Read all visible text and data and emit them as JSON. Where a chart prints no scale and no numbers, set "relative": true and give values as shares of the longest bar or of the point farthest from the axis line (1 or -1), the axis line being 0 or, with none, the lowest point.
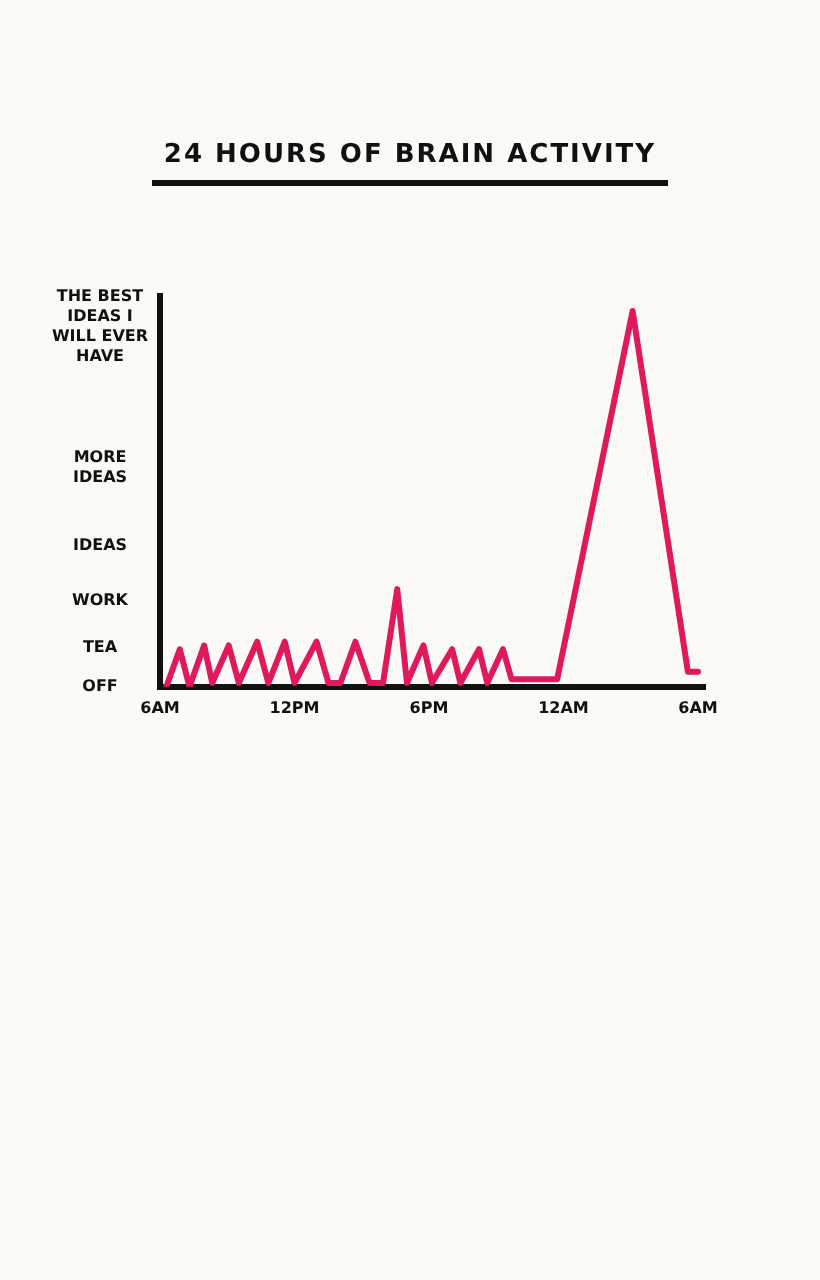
{
  "chart_data": {
    "type": "line",
    "title": "24 HOURS OF BRAIN ACTIVITY",
    "x": [
      "--01-01T06:17",
      "--01-01T06:53",
      "--01-01T07:19",
      "--01-01T07:58",
      "--01-01T08:20",
      "--01-01T09:04",
      "--01-01T09:31",
      "--01-01T10:20",
      "--01-01T10:50",
      "--01-01T11:34",
      "--01-01T12:00",
      "--01-01T12:59",
      "--01-01T13:31",
      "--01-01T14:03",
      "--01-01T14:43",
      "--01-01T15:21",
      "--01-01T15:57",
      "--01-01T16:35",
      "--01-01T17:01",
      "--01-01T17:45",
      "--01-01T18:08",
      "--01-01T19:02",
      "--01-01T19:24",
      "--01-01T20:14",
      "--01-01T20:36",
      "--01-01T21:18",
      "--01-01T21:41",
      "--01-01T23:43",
      "--01-02T03:05",
      "--01-02T05:33",
      "--01-02T06:00"
    ],
    "series": [
      {
        "color": "#e0185c",
        "values": [
          0,
          0.1,
          0,
          0.11,
          0.01,
          0.11,
          0.01,
          0.12,
          0.01,
          0.12,
          0.01,
          0.12,
          0.01,
          0.01,
          0.12,
          0.01,
          0.01,
          0.26,
          0.01,
          0.11,
          0.01,
          0.1,
          0.01,
          0.1,
          0.01,
          0.1,
          0.02,
          0.02,
          1,
          0.04,
          0.04
        ]
      }
    ],
    "relative": true,
    "xlim": [
      "--01-01T06:00",
      "--01-02T06:18"
    ],
    "xticks": [
      {
        "value": "--01-01T06:00",
        "label": "6AM"
      },
      {
        "value": "--01-01T12:00",
        "label": "12PM"
      },
      {
        "value": "--01-01T18:00",
        "label": "6PM"
      },
      {
        "value": "--01-02T00:00",
        "label": "12AM"
      },
      {
        "value": "--01-02T06:00",
        "label": "6AM"
      }
    ],
    "annotations": [
      "THE BEST IDEAS I WILL EVER HAVE",
      "MORE IDEAS",
      "IDEAS",
      "WORK",
      "TEA",
      "OFF"
    ],
    "grid": false,
    "legend": false,
    "marker": "none",
    "line_style": "solid"
  }
}
